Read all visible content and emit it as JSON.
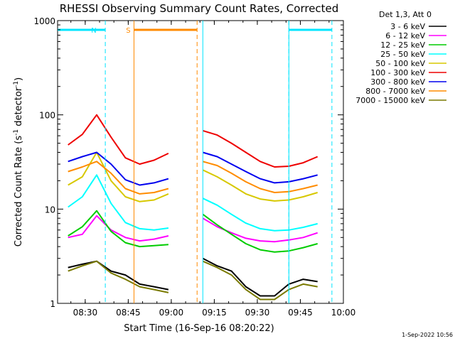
{
  "chart_data": {
    "type": "line",
    "title": "RHESSI Observing Summary Count Rates, Corrected",
    "xlabel": "Start Time (16-Sep-16 08:20:22)",
    "ylabel_main": "Corrected Count Rate (s",
    "ylabel_sup1": "-1",
    "ylabel_mid": " detector",
    "ylabel_sup2": "-1",
    "ylabel_end": ")",
    "y_scale": "log",
    "ylim": [
      1,
      1000
    ],
    "xlim": [
      "08:20:22",
      "10:00"
    ],
    "x_ticks": [
      "08:30",
      "08:45",
      "09:00",
      "09:15",
      "09:30",
      "09:45",
      "10:00"
    ],
    "y_ticks": [
      "1",
      "10",
      "100",
      "1000"
    ],
    "legend_title": "Det 1,3, Att 0",
    "legend_placement": "right",
    "timestamp": "1-Sep-2022 10:56",
    "flags": [
      {
        "label": "N",
        "color": "#00e5ff",
        "segments": [
          [
            "08:20:22",
            "08:37"
          ],
          [
            "09:41",
            "09:56"
          ]
        ],
        "boundaries": [
          "08:37",
          "09:41",
          "09:56"
        ]
      },
      {
        "label": "S",
        "color": "#ff8a00",
        "segments": [
          [
            "08:47",
            "09:09"
          ]
        ],
        "boundaries": [
          "09:09"
        ]
      }
    ],
    "gap": [
      "09:09",
      "09:11"
    ],
    "series": [
      {
        "name": "3 - 6 keV",
        "color": "#000000",
        "values_segment1": [
          [
            0,
            2.4
          ],
          [
            5,
            2.6
          ],
          [
            10,
            2.8
          ],
          [
            15,
            2.2
          ],
          [
            20,
            2.0
          ],
          [
            25,
            1.6
          ],
          [
            30,
            1.5
          ],
          [
            35,
            1.4
          ]
        ],
        "values_segment2": [
          [
            0,
            3.0
          ],
          [
            5,
            2.5
          ],
          [
            10,
            2.2
          ],
          [
            15,
            1.5
          ],
          [
            20,
            1.2
          ],
          [
            25,
            1.2
          ],
          [
            30,
            1.6
          ],
          [
            35,
            1.8
          ],
          [
            40,
            1.7
          ]
        ]
      },
      {
        "name": "6 - 12 keV",
        "color": "#ff00ff",
        "values_segment1": [
          [
            0,
            5.0
          ],
          [
            5,
            5.4
          ],
          [
            10,
            8.5
          ],
          [
            15,
            6.0
          ],
          [
            20,
            5.0
          ],
          [
            25,
            4.6
          ],
          [
            30,
            4.8
          ],
          [
            35,
            5.2
          ]
        ],
        "values_segment2": [
          [
            0,
            8.0
          ],
          [
            5,
            6.5
          ],
          [
            10,
            5.6
          ],
          [
            15,
            4.9
          ],
          [
            20,
            4.6
          ],
          [
            25,
            4.5
          ],
          [
            30,
            4.7
          ],
          [
            35,
            5.0
          ],
          [
            40,
            5.6
          ]
        ]
      },
      {
        "name": "12 - 25 keV",
        "color": "#00cc00",
        "values_segment1": [
          [
            0,
            5.2
          ],
          [
            5,
            6.5
          ],
          [
            10,
            9.6
          ],
          [
            15,
            5.8
          ],
          [
            20,
            4.4
          ],
          [
            25,
            4.0
          ],
          [
            30,
            4.1
          ],
          [
            35,
            4.2
          ]
        ],
        "values_segment2": [
          [
            0,
            8.8
          ],
          [
            5,
            6.8
          ],
          [
            10,
            5.4
          ],
          [
            15,
            4.3
          ],
          [
            20,
            3.7
          ],
          [
            25,
            3.5
          ],
          [
            30,
            3.6
          ],
          [
            35,
            3.9
          ],
          [
            40,
            4.3
          ]
        ]
      },
      {
        "name": "25 - 50 keV",
        "color": "#00ffff",
        "values_segment1": [
          [
            0,
            10.5
          ],
          [
            5,
            13.5
          ],
          [
            10,
            23.0
          ],
          [
            15,
            11.5
          ],
          [
            20,
            7.2
          ],
          [
            25,
            6.2
          ],
          [
            30,
            6.0
          ],
          [
            35,
            6.3
          ]
        ],
        "values_segment2": [
          [
            0,
            13.0
          ],
          [
            5,
            11.0
          ],
          [
            10,
            8.8
          ],
          [
            15,
            7.1
          ],
          [
            20,
            6.2
          ],
          [
            25,
            5.9
          ],
          [
            30,
            6.0
          ],
          [
            35,
            6.4
          ],
          [
            40,
            7.0
          ]
        ]
      },
      {
        "name": "50 - 100 keV",
        "color": "#d7c800",
        "values_segment1": [
          [
            0,
            18.0
          ],
          [
            5,
            22.0
          ],
          [
            10,
            40.0
          ],
          [
            15,
            20.0
          ],
          [
            20,
            13.5
          ],
          [
            25,
            12.0
          ],
          [
            30,
            12.5
          ],
          [
            35,
            14.5
          ]
        ],
        "values_segment2": [
          [
            0,
            26.0
          ],
          [
            5,
            22.0
          ],
          [
            10,
            18.0
          ],
          [
            15,
            14.5
          ],
          [
            20,
            12.8
          ],
          [
            25,
            12.2
          ],
          [
            30,
            12.5
          ],
          [
            35,
            13.5
          ],
          [
            40,
            15.0
          ]
        ]
      },
      {
        "name": "100 - 300 keV",
        "color": "#ee0000",
        "values_segment1": [
          [
            0,
            48.0
          ],
          [
            5,
            62.0
          ],
          [
            10,
            100.0
          ],
          [
            15,
            58.0
          ],
          [
            20,
            35.0
          ],
          [
            25,
            30.0
          ],
          [
            30,
            33.0
          ],
          [
            35,
            39.0
          ]
        ],
        "values_segment2": [
          [
            0,
            68.0
          ],
          [
            5,
            61.0
          ],
          [
            10,
            50.0
          ],
          [
            15,
            40.0
          ],
          [
            20,
            32.0
          ],
          [
            25,
            28.0
          ],
          [
            30,
            28.5
          ],
          [
            35,
            31.0
          ],
          [
            40,
            36.0
          ]
        ]
      },
      {
        "name": "300 - 800 keV",
        "color": "#0000ee",
        "values_segment1": [
          [
            0,
            32.0
          ],
          [
            5,
            36.0
          ],
          [
            10,
            40.0
          ],
          [
            15,
            30.0
          ],
          [
            20,
            20.5
          ],
          [
            25,
            18.0
          ],
          [
            30,
            19.0
          ],
          [
            35,
            21.0
          ]
        ],
        "values_segment2": [
          [
            0,
            40.0
          ],
          [
            5,
            36.0
          ],
          [
            10,
            30.0
          ],
          [
            15,
            25.0
          ],
          [
            20,
            21.0
          ],
          [
            25,
            19.0
          ],
          [
            30,
            19.5
          ],
          [
            35,
            21.0
          ],
          [
            40,
            23.0
          ]
        ]
      },
      {
        "name": "800 - 7000 keV",
        "color": "#ff8c00",
        "values_segment1": [
          [
            0,
            25.0
          ],
          [
            5,
            28.0
          ],
          [
            10,
            32.0
          ],
          [
            15,
            24.0
          ],
          [
            20,
            16.5
          ],
          [
            25,
            14.5
          ],
          [
            30,
            15.0
          ],
          [
            35,
            16.5
          ]
        ],
        "values_segment2": [
          [
            0,
            32.0
          ],
          [
            5,
            29.0
          ],
          [
            10,
            24.0
          ],
          [
            15,
            19.5
          ],
          [
            20,
            16.5
          ],
          [
            25,
            15.0
          ],
          [
            30,
            15.3
          ],
          [
            35,
            16.5
          ],
          [
            40,
            18.0
          ]
        ]
      },
      {
        "name": "7000 - 15000 keV",
        "color": "#7a7a00",
        "values_segment1": [
          [
            0,
            2.2
          ],
          [
            5,
            2.5
          ],
          [
            10,
            2.8
          ],
          [
            15,
            2.1
          ],
          [
            20,
            1.8
          ],
          [
            25,
            1.5
          ],
          [
            30,
            1.4
          ],
          [
            35,
            1.3
          ]
        ],
        "values_segment2": [
          [
            0,
            2.8
          ],
          [
            5,
            2.4
          ],
          [
            10,
            2.0
          ],
          [
            15,
            1.4
          ],
          [
            20,
            1.1
          ],
          [
            25,
            1.1
          ],
          [
            30,
            1.4
          ],
          [
            35,
            1.6
          ],
          [
            40,
            1.5
          ]
        ]
      }
    ]
  }
}
